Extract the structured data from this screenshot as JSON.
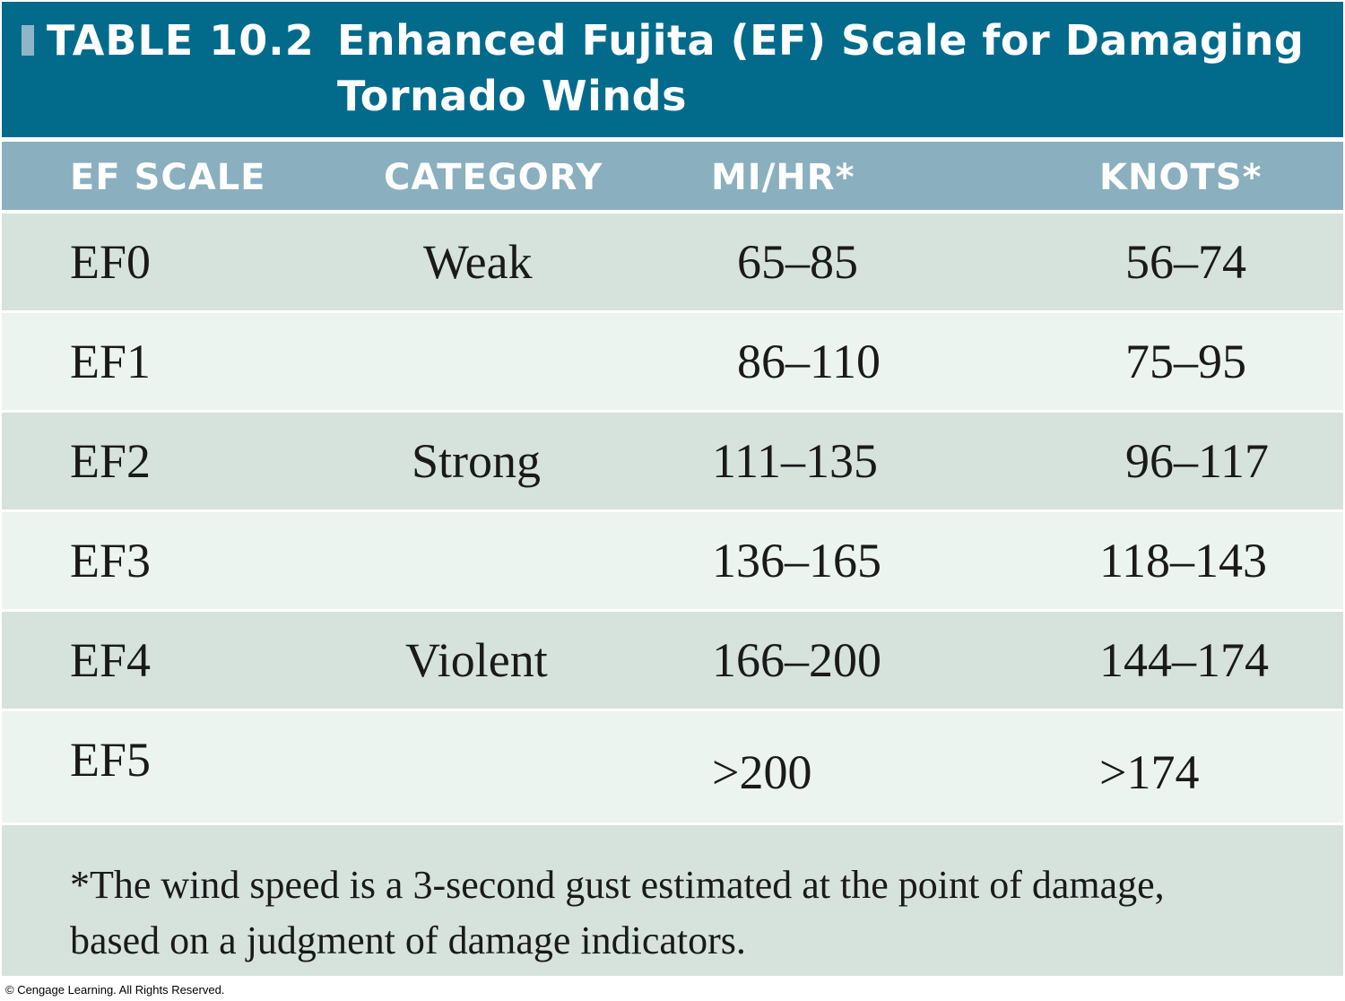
{
  "title": {
    "label": "TABLE 10.2",
    "text": "Enhanced Fujita (EF) Scale for Damaging Tornado Winds"
  },
  "columns": {
    "ef_scale": "EF SCALE",
    "category": "CATEGORY",
    "mph": "MI/HR*",
    "knots": "KNOTS*"
  },
  "rows": [
    {
      "scale": "EF0",
      "category": "Weak",
      "mph": "65–85",
      "knots": "56–74"
    },
    {
      "scale": "EF1",
      "category": "",
      "mph": "86–110",
      "knots": "75–95"
    },
    {
      "scale": "EF2",
      "category": "Strong",
      "mph": "111–135",
      "knots": "96–117"
    },
    {
      "scale": "EF3",
      "category": "",
      "mph": "136–165",
      "knots": "118–143"
    },
    {
      "scale": "EF4",
      "category": "Violent",
      "mph": "166–200",
      "knots": "144–174"
    },
    {
      "scale": "EF5",
      "category": "",
      "mph": ">200",
      "knots": ">174"
    }
  ],
  "footnote": "*The wind speed is a 3-second gust estimated at the point of damage, based on a judgment of damage indicators.",
  "copyright": "© Cengage Learning. All Rights Reserved.",
  "colors": {
    "title_bg": "#026b8c",
    "header_bg": "#8aafbf",
    "row_dark": "#d6e3dd",
    "row_light": "#ebf4ef"
  }
}
